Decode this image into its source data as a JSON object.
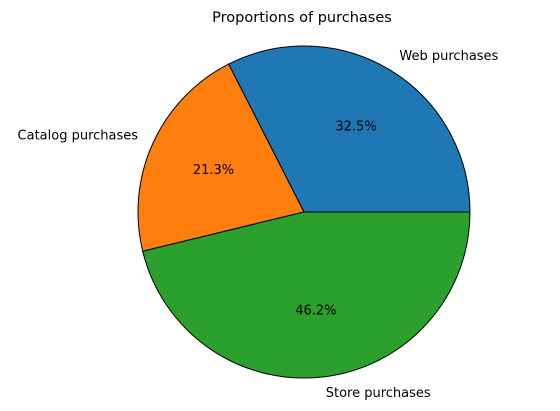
{
  "chart_data": {
    "type": "pie",
    "title": "Proportions of purchases",
    "slices": [
      {
        "label": "Web purchases",
        "value": 32.5,
        "pct_label": "32.5%",
        "color": "#1f77b4"
      },
      {
        "label": "Catalog purchases",
        "value": 21.3,
        "pct_label": "21.3%",
        "color": "#ff7f0e"
      },
      {
        "label": "Store purchases",
        "value": 46.2,
        "pct_label": "46.2%",
        "color": "#2ca02c"
      }
    ],
    "start_angle_deg": 0,
    "direction": "counterclockwise",
    "edge_color": "#000000"
  }
}
